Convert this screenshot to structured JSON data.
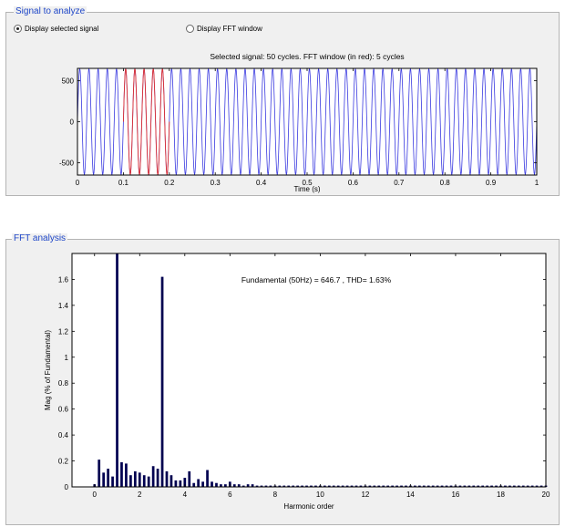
{
  "signal_panel": {
    "title": "Signal to analyze",
    "radio_selected_label": "Display selected signal",
    "radio_fft_label": "Display FFT window",
    "selected_option": "Display selected signal"
  },
  "fft_panel": {
    "title": "FFT analysis"
  },
  "colors": {
    "signal": "#3a3ae0",
    "fft_window": "#e03030",
    "bars": "#000050",
    "panel_title": "#1f47c8",
    "panel_bg": "#f0f0f0"
  },
  "chart_data": [
    {
      "type": "line",
      "title": "Selected signal: 50 cycles. FFT window (in red): 5 cycles",
      "xlabel": "Time (s)",
      "ylabel": "",
      "xlim": [
        0,
        1
      ],
      "ylim": [
        -650,
        650
      ],
      "x_ticks": [
        0,
        0.1,
        0.2,
        0.3,
        0.4,
        0.5,
        0.6,
        0.7,
        0.8,
        0.9,
        1
      ],
      "x_tick_labels": [
        "0",
        "0.1",
        "0.2",
        "0.3",
        "0.4",
        "0.5",
        "0.6",
        "0.7",
        "0.8",
        "0.9",
        "1"
      ],
      "y_ticks": [
        -500,
        0,
        500
      ],
      "y_tick_labels": [
        "-500",
        "0",
        "500"
      ],
      "grid": false,
      "series": [
        {
          "cycles": 50,
          "frequency_hz": 50,
          "amplitude": 646.7,
          "x_range": [
            0,
            1
          ]
        },
        {
          "cycles": 5,
          "frequency_hz": 50,
          "amplitude": 646.7,
          "x_range": [
            0.1,
            0.2
          ]
        }
      ]
    },
    {
      "type": "bar",
      "title": "Fundamental (50Hz) = 646.7 , THD= 1.63%",
      "xlabel": "Harmonic order",
      "ylabel": "Mag (% of Fundamental)",
      "xlim": [
        -1,
        20
      ],
      "ylim": [
        0,
        1.8
      ],
      "x_ticks": [
        0,
        2,
        4,
        6,
        8,
        10,
        12,
        14,
        16,
        18,
        20
      ],
      "x_tick_labels": [
        "0",
        "2",
        "4",
        "6",
        "8",
        "10",
        "12",
        "14",
        "16",
        "18",
        "20"
      ],
      "y_ticks": [
        0,
        0.2,
        0.4,
        0.6,
        0.8,
        1,
        1.2,
        1.4,
        1.6
      ],
      "y_tick_labels": [
        "0",
        "0.2",
        "0.4",
        "0.6",
        "0.8",
        "1",
        "1.2",
        "1.4",
        "1.6"
      ],
      "grid": false,
      "x": [
        0.0,
        0.2,
        0.4,
        0.6,
        0.8,
        1.0,
        1.2,
        1.4,
        1.6,
        1.8,
        2.0,
        2.2,
        2.4,
        2.6,
        2.8,
        3.0,
        3.2,
        3.4,
        3.6,
        3.8,
        4.0,
        4.2,
        4.4,
        4.6,
        4.8,
        5.0,
        5.2,
        5.4,
        5.6,
        5.8,
        6.0,
        6.2,
        6.4,
        6.6,
        6.8,
        7.0,
        7.2,
        7.4,
        7.6,
        7.8,
        8.0,
        8.2,
        8.4,
        8.6,
        8.8,
        9.0,
        9.2,
        9.4,
        9.6,
        9.8,
        10.0,
        10.2,
        10.4,
        10.6,
        10.8,
        11.0,
        11.2,
        11.4,
        11.6,
        11.8,
        12.0,
        12.2,
        12.4,
        12.6,
        12.8,
        13.0,
        13.2,
        13.4,
        13.6,
        13.8,
        14.0,
        14.2,
        14.4,
        14.6,
        14.8,
        15.0,
        15.2,
        15.4,
        15.6,
        15.8,
        16.0,
        16.2,
        16.4,
        16.6,
        16.8,
        17.0,
        17.2,
        17.4,
        17.6,
        17.8,
        18.0,
        18.2,
        18.4,
        18.6,
        18.8,
        19.0,
        19.2,
        19.4,
        19.6,
        19.8,
        20.0
      ],
      "values": [
        0.02,
        0.21,
        0.11,
        0.14,
        0.08,
        1.8,
        0.19,
        0.18,
        0.09,
        0.12,
        0.11,
        0.09,
        0.08,
        0.16,
        0.14,
        1.62,
        0.12,
        0.09,
        0.05,
        0.05,
        0.07,
        0.12,
        0.03,
        0.06,
        0.04,
        0.13,
        0.04,
        0.03,
        0.02,
        0.02,
        0.04,
        0.02,
        0.02,
        0.01,
        0.02,
        0.02,
        0.01,
        0.01,
        0.01,
        0.01,
        0.01,
        0.01,
        0.01,
        0.01,
        0.01,
        0.01,
        0.01,
        0.01,
        0.01,
        0.01,
        0.01,
        0.01,
        0.01,
        0.01,
        0.01,
        0.01,
        0.01,
        0.01,
        0.01,
        0.01,
        0.01,
        0.01,
        0.01,
        0.01,
        0.01,
        0.01,
        0.01,
        0.01,
        0.01,
        0.01,
        0.01,
        0.01,
        0.01,
        0.01,
        0.01,
        0.01,
        0.01,
        0.01,
        0.01,
        0.01,
        0.01,
        0.01,
        0.01,
        0.01,
        0.01,
        0.01,
        0.01,
        0.01,
        0.01,
        0.01,
        0.01,
        0.01,
        0.01,
        0.01,
        0.01,
        0.01,
        0.01,
        0.01,
        0.01,
        0.01,
        0.01
      ]
    }
  ]
}
